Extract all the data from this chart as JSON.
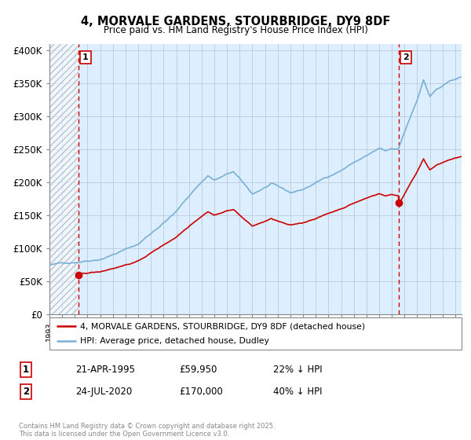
{
  "title_line1": "4, MORVALE GARDENS, STOURBRIDGE, DY9 8DF",
  "title_line2": "Price paid vs. HM Land Registry's House Price Index (HPI)",
  "sale1_date_x": 1995.31,
  "sale1_price": 59950,
  "sale2_date_x": 2020.56,
  "sale2_price": 170000,
  "ylim": [
    0,
    410000
  ],
  "xlim": [
    1993.0,
    2025.5
  ],
  "yticks": [
    0,
    50000,
    100000,
    150000,
    200000,
    250000,
    300000,
    350000,
    400000
  ],
  "ytick_labels": [
    "£0",
    "£50K",
    "£100K",
    "£150K",
    "£200K",
    "£250K",
    "£300K",
    "£350K",
    "£400K"
  ],
  "legend_label_red": "4, MORVALE GARDENS, STOURBRIDGE, DY9 8DF (detached house)",
  "legend_label_blue": "HPI: Average price, detached house, Dudley",
  "annotation1_date": "21-APR-1995",
  "annotation1_price": "£59,950",
  "annotation1_hpi": "22% ↓ HPI",
  "annotation2_date": "24-JUL-2020",
  "annotation2_price": "£170,000",
  "annotation2_hpi": "40% ↓ HPI",
  "footer": "Contains HM Land Registry data © Crown copyright and database right 2025.\nThis data is licensed under the Open Government Licence v3.0.",
  "line_red_color": "#cc0000",
  "line_blue_color": "#7aafd4",
  "bg_color": "#ddeeff",
  "grid_color": "#b8ccdd",
  "hatch_color": "#cccccc"
}
